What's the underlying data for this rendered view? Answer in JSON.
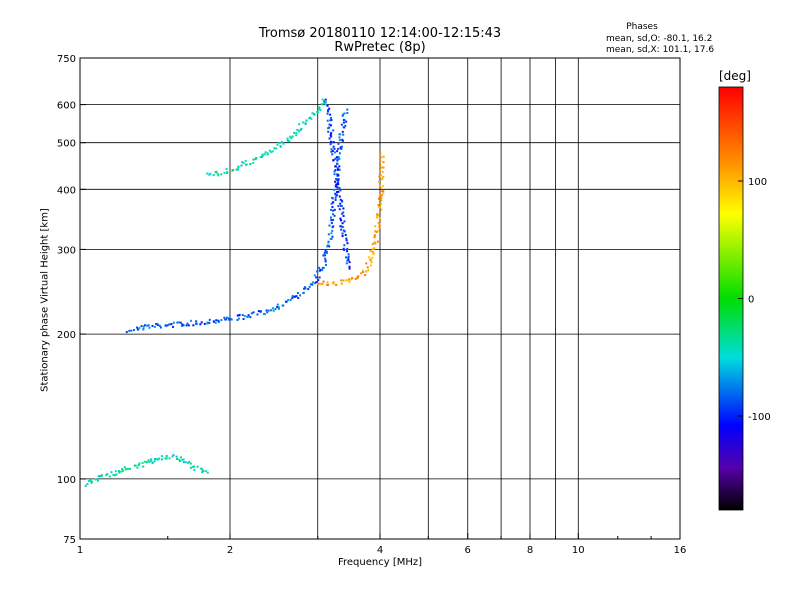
{
  "header": {
    "title": "Tromsø 20180110 12:14:00-12:15:43",
    "subtitle": "RwPretec (8p)"
  },
  "phases": {
    "heading": "Phases",
    "o_line": "mean, sd,O: -80.1, 16.2",
    "x_line": "mean, sd,X: 101.1, 17.6"
  },
  "colorbar": {
    "label": "[deg]",
    "ticks": [
      "100",
      "0",
      "-100"
    ],
    "tick_values": [
      100,
      0,
      -100
    ],
    "range": [
      -180,
      180
    ]
  },
  "chart_data": {
    "type": "scatter",
    "xlabel": "Frequency [MHz]",
    "ylabel": "Stationary phase Virtual Height [km]",
    "xscale": "log",
    "yscale": "log",
    "xlim": [
      1,
      16
    ],
    "ylim": [
      75,
      750
    ],
    "xticks": [
      1,
      2,
      4,
      6,
      8,
      10,
      16
    ],
    "xtick_labels": [
      "1",
      "2",
      "4",
      "6",
      "8",
      "10",
      "16"
    ],
    "yticks": [
      75,
      100,
      200,
      300,
      400,
      500,
      600,
      750
    ],
    "ytick_labels": [
      "75",
      "100",
      "200",
      "300",
      "400",
      "500",
      "600",
      "750"
    ],
    "x_gridlines": [
      2,
      3,
      4,
      5,
      6,
      7,
      8,
      9,
      10
    ],
    "y_gridlines": [
      100,
      200,
      300,
      400,
      500,
      600
    ],
    "grid": true,
    "traces": [
      {
        "name": "O-mode F-layer trace (blue)",
        "color_value": -85,
        "points": [
          [
            1.25,
            205
          ],
          [
            1.35,
            208
          ],
          [
            1.5,
            210
          ],
          [
            1.7,
            212
          ],
          [
            1.9,
            215
          ],
          [
            2.1,
            218
          ],
          [
            2.3,
            222
          ],
          [
            2.5,
            230
          ],
          [
            2.7,
            240
          ],
          [
            2.9,
            255
          ],
          [
            3.05,
            275
          ],
          [
            3.15,
            310
          ],
          [
            3.2,
            360
          ],
          [
            3.25,
            420
          ],
          [
            3.3,
            480
          ],
          [
            3.35,
            540
          ],
          [
            3.4,
            590
          ]
        ]
      },
      {
        "name": "O-mode upper branch (blue)",
        "color_value": -95,
        "points": [
          [
            3.1,
            610
          ],
          [
            3.15,
            560
          ],
          [
            3.2,
            500
          ],
          [
            3.25,
            440
          ],
          [
            3.3,
            390
          ],
          [
            3.35,
            340
          ],
          [
            3.4,
            300
          ],
          [
            3.45,
            275
          ]
        ]
      },
      {
        "name": "O-mode oblique trace (light blue)",
        "color_value": -40,
        "points": [
          [
            1.8,
            430
          ],
          [
            2.0,
            440
          ],
          [
            2.2,
            460
          ],
          [
            2.4,
            480
          ],
          [
            2.6,
            510
          ],
          [
            2.8,
            550
          ],
          [
            3.0,
            590
          ],
          [
            3.1,
            620
          ]
        ]
      },
      {
        "name": "X-mode trace (yellow-orange)",
        "color_value": 110,
        "points": [
          [
            3.0,
            255
          ],
          [
            3.2,
            256
          ],
          [
            3.4,
            258
          ],
          [
            3.55,
            262
          ],
          [
            3.7,
            270
          ],
          [
            3.8,
            285
          ],
          [
            3.9,
            310
          ],
          [
            3.95,
            350
          ],
          [
            4.0,
            400
          ],
          [
            4.02,
            440
          ],
          [
            4.0,
            480
          ]
        ]
      },
      {
        "name": "E-layer echoes (light blue)",
        "color_value": -40,
        "points": [
          [
            1.02,
            98
          ],
          [
            1.06,
            100
          ],
          [
            1.1,
            102
          ],
          [
            1.2,
            104
          ],
          [
            1.3,
            107
          ],
          [
            1.4,
            110
          ],
          [
            1.5,
            112
          ],
          [
            1.6,
            110
          ],
          [
            1.7,
            106
          ],
          [
            1.8,
            104
          ]
        ]
      }
    ]
  }
}
